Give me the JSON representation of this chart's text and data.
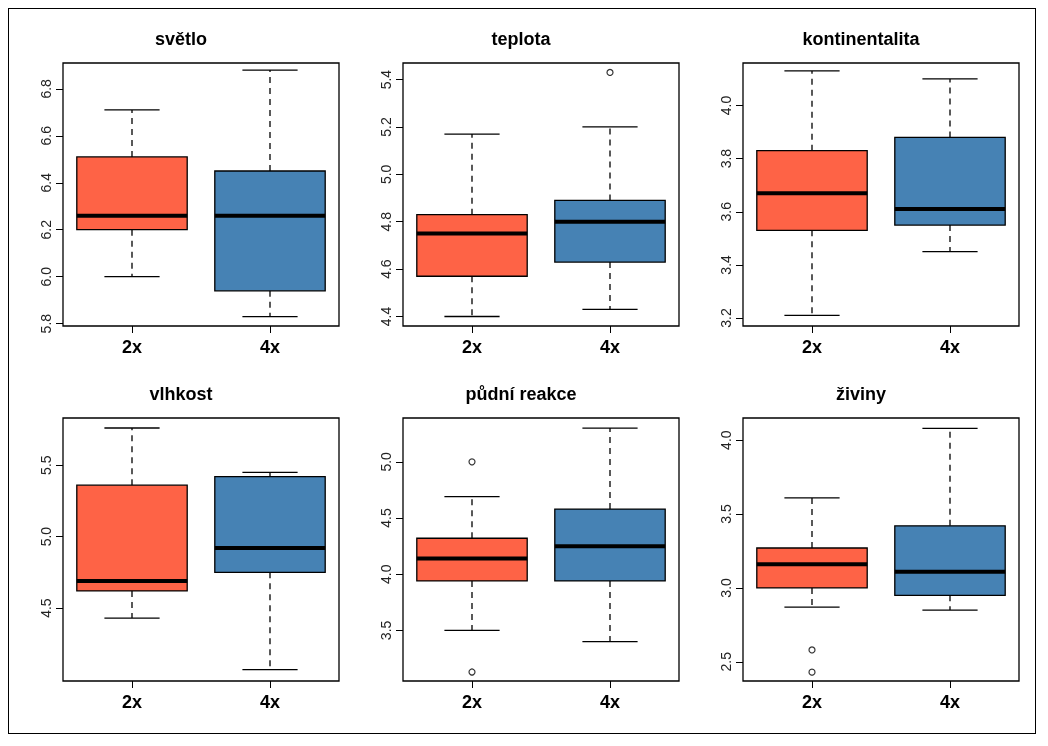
{
  "chart_data": [
    {
      "type": "box",
      "title": "světlo",
      "categories": [
        "2x",
        "4x"
      ],
      "colors": [
        "#fe6346",
        "#4682b4"
      ],
      "boxes": [
        {
          "low": 6.0,
          "q1": 6.2,
          "median": 6.26,
          "q3": 6.51,
          "high": 6.71
        },
        {
          "low": 5.83,
          "q1": 5.94,
          "median": 6.26,
          "q3": 6.45,
          "high": 6.88
        }
      ],
      "ylim": [
        5.79,
        6.91
      ],
      "yticks": [
        5.8,
        {
          "value": 6,
          "label": "6.0"
        },
        6.2,
        6.4,
        6.6,
        6.8
      ],
      "grid": false
    },
    {
      "type": "box",
      "title": "teplota",
      "categories": [
        "2x",
        "4x"
      ],
      "colors": [
        "#fe6346",
        "#4682b4"
      ],
      "boxes": [
        {
          "low": 4.4,
          "q1": 4.57,
          "median": 4.75,
          "q3": 4.83,
          "high": 5.17
        },
        {
          "low": 4.43,
          "q1": 4.63,
          "median": 4.8,
          "q3": 4.89,
          "high": 5.2,
          "outliers": [
            5.43
          ]
        }
      ],
      "ylim": [
        4.36,
        5.47
      ],
      "yticks": [
        4.4,
        4.6,
        4.8,
        {
          "value": 5,
          "label": "5.0"
        },
        5.2,
        5.4
      ],
      "grid": false
    },
    {
      "type": "box",
      "title": "kontinentalita",
      "categories": [
        "2x",
        "4x"
      ],
      "colors": [
        "#fe6346",
        "#4682b4"
      ],
      "boxes": [
        {
          "low": 3.21,
          "q1": 3.53,
          "median": 3.67,
          "q3": 3.83,
          "high": 4.13
        },
        {
          "low": 3.45,
          "q1": 3.55,
          "median": 3.61,
          "q3": 3.88,
          "high": 4.1
        }
      ],
      "ylim": [
        3.17,
        4.16
      ],
      "yticks": [
        3.2,
        3.4,
        3.6,
        3.8,
        {
          "value": 4,
          "label": "4.0"
        }
      ],
      "grid": false
    },
    {
      "type": "box",
      "title": "vlhkost",
      "categories": [
        "2x",
        "4x"
      ],
      "colors": [
        "#fe6346",
        "#4682b4"
      ],
      "boxes": [
        {
          "low": 4.43,
          "q1": 4.62,
          "median": 4.69,
          "q3": 5.36,
          "high": 5.76
        },
        {
          "low": 4.07,
          "q1": 4.75,
          "median": 4.92,
          "q3": 5.42,
          "high": 5.45
        }
      ],
      "ylim": [
        3.99,
        5.83
      ],
      "yticks": [
        4.5,
        {
          "value": 5,
          "label": "5.0"
        },
        5.5
      ],
      "grid": false
    },
    {
      "type": "box",
      "title": "půdní reakce",
      "categories": [
        "2x",
        "4x"
      ],
      "colors": [
        "#fe6346",
        "#4682b4"
      ],
      "boxes": [
        {
          "low": 3.5,
          "q1": 3.94,
          "median": 4.14,
          "q3": 4.32,
          "high": 4.69,
          "outliers": [
            5.0,
            3.13
          ]
        },
        {
          "low": 3.4,
          "q1": 3.94,
          "median": 4.25,
          "q3": 4.58,
          "high": 5.3
        }
      ],
      "ylim": [
        3.05,
        5.39
      ],
      "yticks": [
        3.5,
        {
          "value": 4,
          "label": "4.0"
        },
        4.5,
        {
          "value": 5,
          "label": "5.0"
        }
      ],
      "grid": false
    },
    {
      "type": "box",
      "title": "živiny",
      "categories": [
        "2x",
        "4x"
      ],
      "colors": [
        "#fe6346",
        "#4682b4"
      ],
      "boxes": [
        {
          "low": 2.87,
          "q1": 3.0,
          "median": 3.16,
          "q3": 3.27,
          "high": 3.61,
          "outliers": [
            2.58,
            2.43
          ]
        },
        {
          "low": 2.85,
          "q1": 2.95,
          "median": 3.11,
          "q3": 3.42,
          "high": 4.08
        }
      ],
      "ylim": [
        2.37,
        4.15
      ],
      "yticks": [
        2.5,
        {
          "value": 3,
          "label": "3.0"
        },
        3.5,
        {
          "value": 4,
          "label": "4.0"
        }
      ],
      "grid": false
    }
  ]
}
